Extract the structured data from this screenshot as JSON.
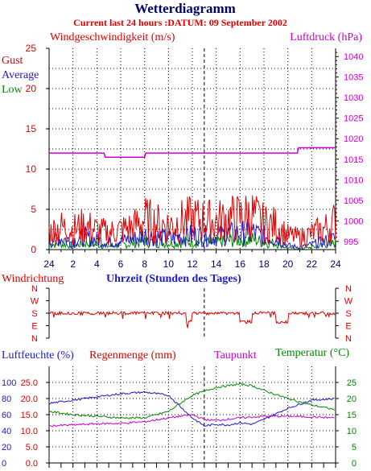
{
  "title": "Wetterdiagramm",
  "subtitle": "Current last 24 hours :DATUM: 09 September 2002",
  "colors": {
    "gust": "#dd0000",
    "average": "#1a1acc",
    "low": "#008800",
    "pressure": "#cc00cc",
    "humidity": "#1a1acc",
    "rain": "#dd0000",
    "dewpoint": "#cc00cc",
    "temperature": "#008800",
    "title": "#000066",
    "axis": "#000000"
  },
  "chart_data": [
    {
      "type": "line",
      "name": "wind_and_pressure",
      "left_title": "Windgeschwindigkeit (m/s)",
      "right_title": "Luftdruck (hPa)",
      "legend": [
        "Gust",
        "Average",
        "Low"
      ],
      "x_ticks": [
        "24",
        "2",
        "4",
        "6",
        "8",
        "10",
        "12",
        "14",
        "16",
        "18",
        "20",
        "22",
        "24"
      ],
      "y_left_ticks": [
        "0",
        "5",
        "10",
        "15",
        "20",
        "25"
      ],
      "y_left_range": [
        0,
        25
      ],
      "y_right_ticks": [
        "995",
        "1000",
        "1005",
        "1010",
        "1015",
        "1020",
        "1025",
        "1030",
        "1035",
        "1040"
      ],
      "y_right_range": [
        993,
        1042
      ],
      "grid": true,
      "series": [
        {
          "name": "Gust",
          "x": [
            0,
            1,
            2,
            3,
            4,
            5,
            6,
            7,
            8,
            9,
            10,
            11,
            12,
            13,
            14,
            15,
            16,
            17,
            18,
            19,
            20,
            21,
            22,
            23,
            24
          ],
          "y": [
            2.2,
            2.8,
            2.5,
            3.0,
            2.4,
            2.1,
            2.5,
            2.8,
            3.8,
            3.3,
            3.0,
            3.5,
            3.8,
            3.6,
            3.5,
            3.8,
            4.0,
            4.3,
            3.2,
            3.0,
            1.8,
            1.5,
            2.0,
            2.5,
            3.5
          ]
        },
        {
          "name": "Average",
          "x": [
            0,
            1,
            2,
            3,
            4,
            5,
            6,
            7,
            8,
            9,
            10,
            11,
            12,
            13,
            14,
            15,
            16,
            17,
            18,
            19,
            20,
            21,
            22,
            23,
            24
          ],
          "y": [
            1.2,
            1.4,
            1.1,
            1.6,
            1.2,
            0.9,
            1.1,
            1.3,
            1.8,
            1.6,
            1.4,
            1.6,
            1.8,
            1.7,
            1.6,
            1.9,
            2.0,
            2.2,
            1.6,
            1.4,
            0.5,
            0.3,
            0.6,
            1.0,
            1.4
          ]
        },
        {
          "name": "Low",
          "x": [
            0,
            1,
            2,
            3,
            4,
            5,
            6,
            7,
            8,
            9,
            10,
            11,
            12,
            13,
            14,
            15,
            16,
            17,
            18,
            19,
            20,
            21,
            22,
            23,
            24
          ],
          "y": [
            0.6,
            0.7,
            0.5,
            0.8,
            0.6,
            0.4,
            0.6,
            0.7,
            1.0,
            0.9,
            0.8,
            0.9,
            1.0,
            0.9,
            0.9,
            1.1,
            1.2,
            1.3,
            0.9,
            0.8,
            0.2,
            0.1,
            0.3,
            0.6,
            0.8
          ]
        },
        {
          "name": "Luftdruck",
          "x": [
            0,
            4.6,
            4.7,
            8.0,
            8.1,
            20.8,
            20.9,
            24
          ],
          "y": [
            1016.5,
            1016.5,
            1015.5,
            1015.5,
            1016.5,
            1016.5,
            1017.8,
            1017.8
          ]
        }
      ]
    },
    {
      "type": "line",
      "name": "wind_direction",
      "left_title": "Windrichtung",
      "x_title": "Uhrzeit (Stunden des Tages)",
      "y_ticks": [
        "N",
        "W",
        "S",
        "E",
        "N"
      ],
      "series": [
        {
          "name": "Windrichtung",
          "x": [
            0,
            2,
            4,
            6,
            8,
            10,
            11,
            11.5,
            12,
            13,
            14,
            15,
            16,
            17,
            18,
            19,
            20,
            21,
            22,
            24
          ],
          "y": [
            "S",
            "S",
            "S",
            "S",
            "S",
            "S",
            "S",
            "E",
            "S",
            "S",
            "S",
            "S",
            "E",
            "S",
            "S",
            "E",
            "S",
            "S",
            "S",
            "S"
          ]
        }
      ]
    },
    {
      "type": "line",
      "name": "humidity_temperature",
      "titles": [
        "Luftfeuchte (%)",
        "Regenmenge (mm)",
        "Taupunkt",
        "Temperatur (°C)"
      ],
      "y_left1_ticks": [
        "0",
        "20",
        "40",
        "60",
        "80",
        "100"
      ],
      "y_left2_ticks": [
        "0.0",
        "5.0",
        "10.0",
        "15.0",
        "20.0",
        "25.0"
      ],
      "y_right_ticks": [
        "0",
        "5",
        "10",
        "15",
        "20",
        "25"
      ],
      "y_right_range": [
        0,
        30
      ],
      "series": [
        {
          "name": "Luftfeuchte",
          "axis": "right",
          "x": [
            0,
            2,
            4,
            6,
            8,
            10,
            12,
            13,
            14,
            15,
            16,
            17,
            18,
            20,
            22,
            24
          ],
          "y": [
            18.5,
            19.5,
            20.5,
            21.5,
            22.0,
            21.0,
            14.0,
            11.5,
            12.0,
            11.8,
            12.5,
            12.0,
            13.5,
            17.0,
            19.5,
            20.0
          ]
        },
        {
          "name": "Temperatur",
          "axis": "right",
          "x": [
            0,
            2,
            4,
            6,
            8,
            10,
            12,
            14,
            16,
            17,
            18,
            20,
            22,
            24
          ],
          "y": [
            16.0,
            15.0,
            14.5,
            14.0,
            14.0,
            16.0,
            21.0,
            23.5,
            24.5,
            24.0,
            22.5,
            20.0,
            18.0,
            16.5
          ]
        },
        {
          "name": "Taupunkt",
          "axis": "right",
          "x": [
            0,
            2,
            4,
            6,
            8,
            10,
            12,
            13,
            14,
            16,
            18,
            20,
            22,
            24
          ],
          "y": [
            11.5,
            11.8,
            12.2,
            12.3,
            12.8,
            14.0,
            15.0,
            13.5,
            13.2,
            14.0,
            14.5,
            14.5,
            14.3,
            14.0
          ]
        }
      ]
    }
  ]
}
